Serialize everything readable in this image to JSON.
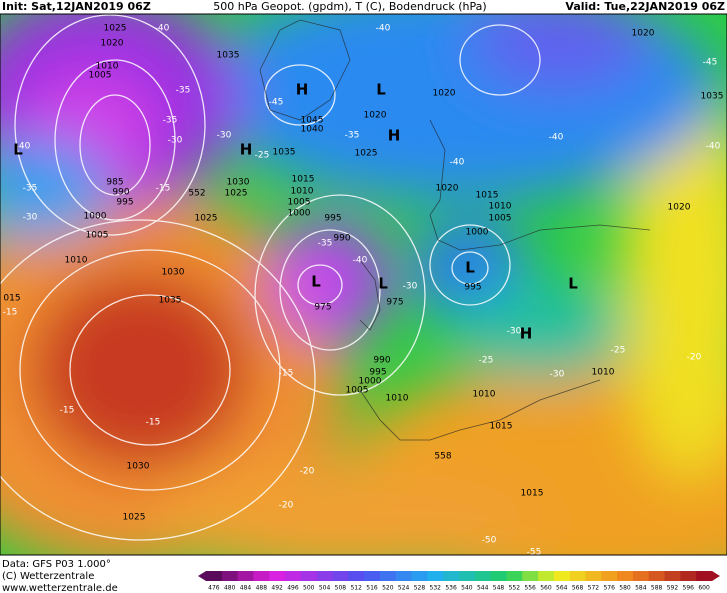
{
  "header": {
    "init": "Init: Sat,12JAN2019 06Z",
    "title": "500 hPa Geopot. (gpdm), T (C), Bodendruck (hPa)",
    "valid": "Valid: Tue,22JAN2019 06Z"
  },
  "map": {
    "pressure_labels": [
      "1025",
      "1020",
      "1010",
      "1005",
      "985",
      "990",
      "995",
      "1000",
      "1005",
      "1010",
      "1025",
      "1030",
      "1035",
      "1030",
      "1025",
      "015",
      "1035",
      "1045",
      "1040",
      "1035",
      "1030",
      "1025",
      "1015",
      "1010",
      "1005",
      "1000",
      "995",
      "990",
      "975",
      "975",
      "990",
      "995",
      "1000",
      "1005",
      "1010",
      "1020",
      "1025",
      "1020",
      "1020",
      "1015",
      "1010",
      "1005",
      "1000",
      "995",
      "1020",
      "1035",
      "1020",
      "1010",
      "1010",
      "1015",
      "1015",
      "552",
      "558"
    ],
    "temperature_labels": [
      "-40",
      "-35",
      "-35",
      "-30",
      "-15",
      "-40",
      "-35",
      "-30",
      "-15",
      "-15",
      "-15",
      "-15",
      "-20",
      "-20",
      "-40",
      "-45",
      "-30",
      "-25",
      "-35",
      "-40",
      "-40",
      "-35",
      "-40",
      "-30",
      "-30",
      "-25",
      "-30",
      "-25",
      "-20",
      "-45",
      "-40",
      "-50",
      "-55"
    ],
    "centers": [
      "H",
      "L",
      "H",
      "H",
      "L",
      "L",
      "L",
      "L",
      "L",
      "H"
    ]
  },
  "footer": {
    "data": "Data: GFS P03 1.000°",
    "copyright": "(C) Wetterzentrale",
    "url": "www.wetterzentrale.de"
  },
  "colorbar": {
    "levels": [
      "476",
      "480",
      "484",
      "488",
      "492",
      "496",
      "500",
      "504",
      "508",
      "512",
      "516",
      "520",
      "524",
      "528",
      "532",
      "536",
      "540",
      "544",
      "548",
      "552",
      "556",
      "560",
      "564",
      "568",
      "572",
      "576",
      "580",
      "584",
      "588",
      "592",
      "596",
      "600"
    ]
  }
}
